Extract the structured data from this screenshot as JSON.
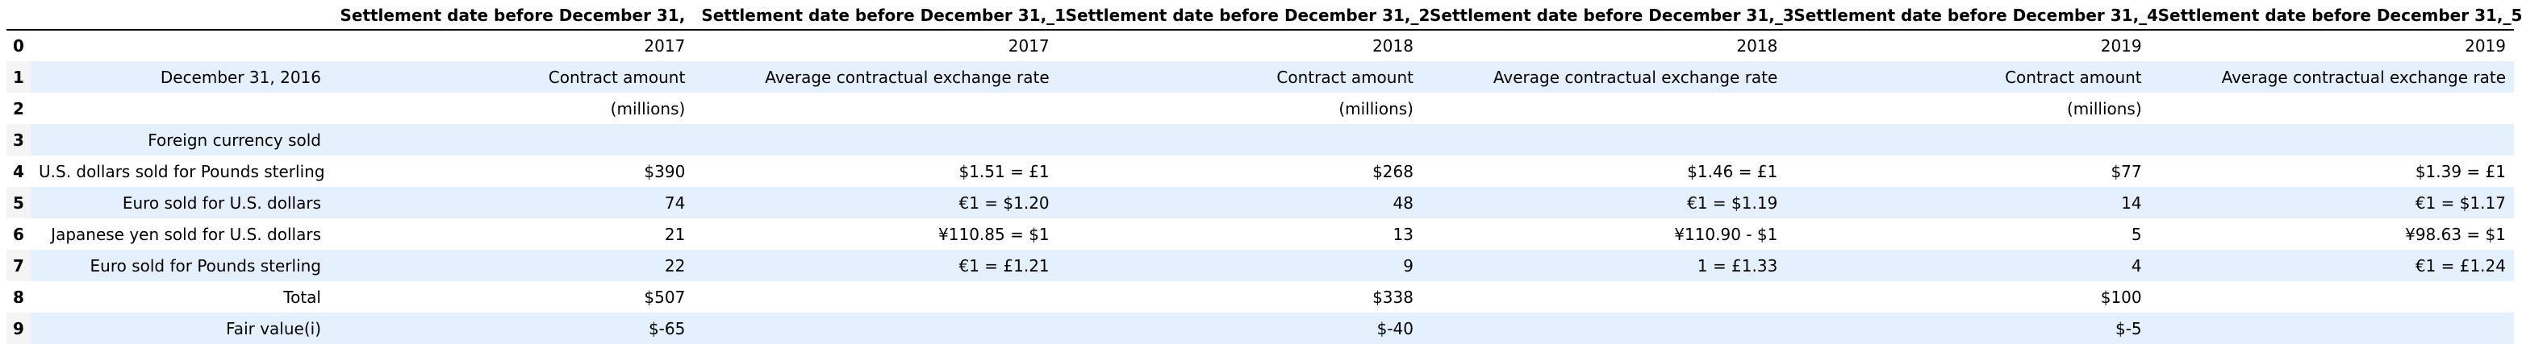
{
  "table": {
    "index_header": "",
    "columns": [
      "",
      "Settlement date before December 31,",
      "Settlement date before December 31,_1",
      "Settlement date before December 31,_2",
      "Settlement date before December 31,_3",
      "Settlement date before December 31,_4",
      "Settlement date before December 31,_5"
    ],
    "rows": [
      {
        "index": "0",
        "cells": [
          "",
          "2017",
          "2017",
          "2018",
          "2018",
          "2019",
          "2019"
        ]
      },
      {
        "index": "1",
        "cells": [
          "December 31, 2016",
          "Contract amount",
          "Average contractual exchange rate",
          "Contract amount",
          "Average contractual exchange rate",
          "Contract amount",
          "Average contractual exchange rate"
        ]
      },
      {
        "index": "2",
        "cells": [
          "",
          "(millions)",
          "",
          "(millions)",
          "",
          "(millions)",
          ""
        ]
      },
      {
        "index": "3",
        "cells": [
          "Foreign currency sold",
          "",
          "",
          "",
          "",
          "",
          ""
        ]
      },
      {
        "index": "4",
        "cells": [
          "U.S. dollars sold for Pounds sterling",
          "$390",
          "$1.51 = £1",
          "$268",
          "$1.46 = £1",
          "$77",
          "$1.39 = £1"
        ]
      },
      {
        "index": "5",
        "cells": [
          "Euro sold for U.S. dollars",
          "74",
          "€1 = $1.20",
          "48",
          "€1 = $1.19",
          "14",
          "€1 = $1.17"
        ]
      },
      {
        "index": "6",
        "cells": [
          "Japanese yen sold for U.S. dollars",
          "21",
          "¥110.85 = $1",
          "13",
          "¥110.90 - $1",
          "5",
          "¥98.63 = $1"
        ]
      },
      {
        "index": "7",
        "cells": [
          "Euro sold for Pounds sterling",
          "22",
          "€1 = £1.21",
          "9",
          "1 = £1.33",
          "4",
          "€1 = £1.24"
        ]
      },
      {
        "index": "8",
        "cells": [
          "Total",
          "$507",
          "",
          "$338",
          "",
          "$100",
          ""
        ]
      },
      {
        "index": "9",
        "cells": [
          "Fair value(i)",
          "$-65",
          "",
          "$-40",
          "",
          "$-5",
          ""
        ]
      }
    ]
  }
}
